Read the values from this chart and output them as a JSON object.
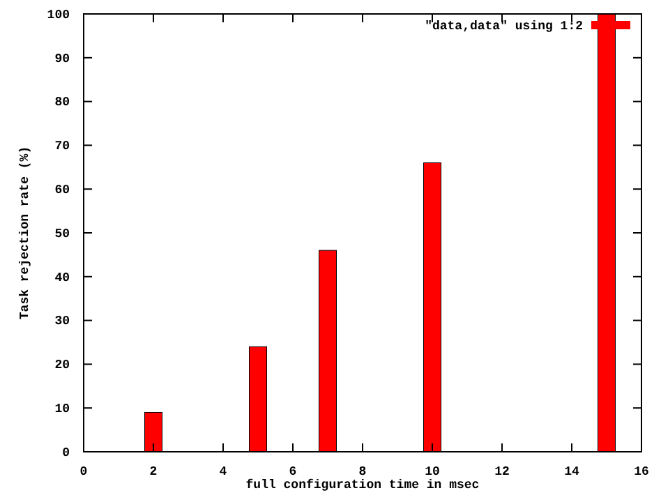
{
  "chart_data": {
    "type": "bar",
    "xlabel": "full configuration time in msec",
    "ylabel": "Task rejection rate (%)",
    "x": [
      2,
      5,
      7,
      10,
      15
    ],
    "series": [
      {
        "name": "\"data,data\" using 1:2",
        "color": "#ff0000",
        "values": [
          9,
          24,
          46,
          66,
          100
        ]
      }
    ],
    "xlim": [
      0,
      16
    ],
    "xticks": [
      0,
      2,
      4,
      6,
      8,
      10,
      12,
      14,
      16
    ],
    "ylim": [
      0,
      100
    ],
    "yticks": [
      0,
      10,
      20,
      30,
      40,
      50,
      60,
      70,
      80,
      90,
      100
    ],
    "legend": "top right",
    "grid": false
  }
}
